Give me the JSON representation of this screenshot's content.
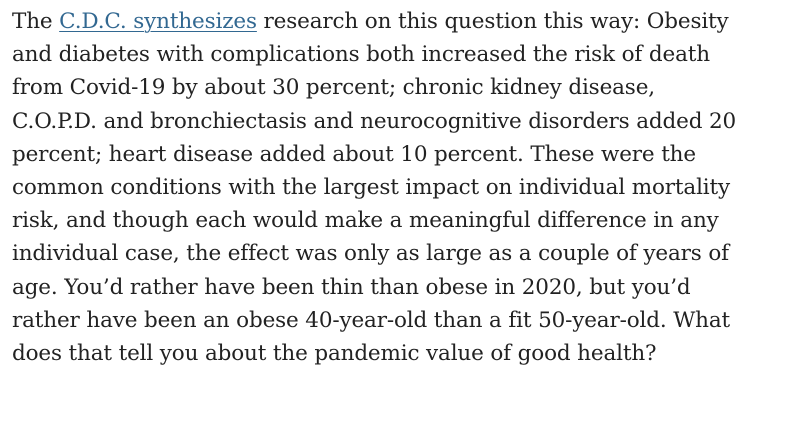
{
  "paragraph": {
    "lines": [
      {
        "before": "The ",
        "link": "C.D.C. synthesizes",
        "after": " research on this question this way: Obesity"
      },
      {
        "text": "and diabetes with complications both increased the risk of death"
      },
      {
        "text": "from Covid-19 by about 30 percent; chronic kidney disease,"
      },
      {
        "text": "C.O.P.D. and bronchiectasis and neurocognitive disorders added 20"
      },
      {
        "text": "percent; heart disease added about 10 percent. These were the"
      },
      {
        "text": "common conditions with the largest impact on individual mortality"
      },
      {
        "text": "risk, and though each would make a meaningful difference in any"
      },
      {
        "text": "individual case, the effect was only as large as a couple of years of"
      },
      {
        "text": "age. You’d rather have been thin than obese in 2020, but you’d"
      },
      {
        "text": "rather have been an obese 40-year-old than a fit 50-year-old. What"
      },
      {
        "text": "does that tell you about the pandemic value of good health?"
      }
    ]
  },
  "colors": {
    "text": "#222222",
    "link": "#326891",
    "background": "#ffffff"
  }
}
